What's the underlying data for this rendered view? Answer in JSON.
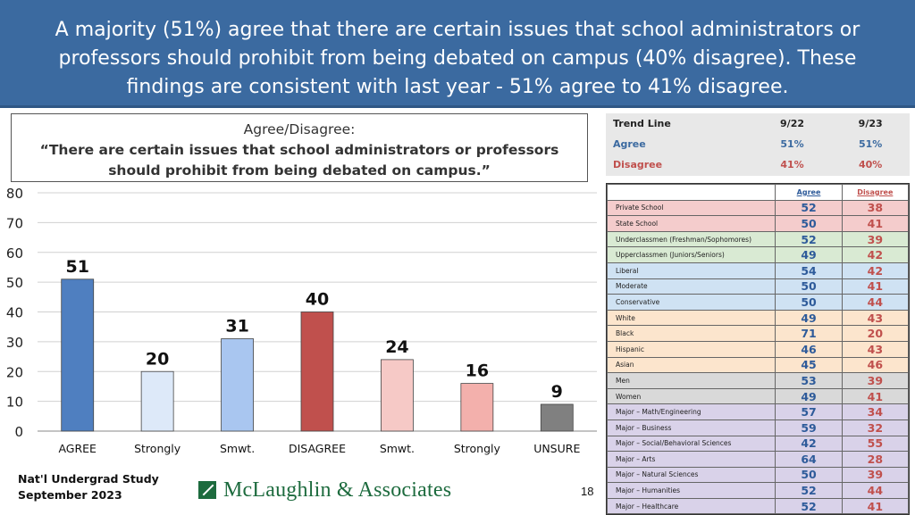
{
  "header": {
    "title": "A majority (51%) agree that there are certain issues that school administrators or professors should prohibit from being debated on campus (40% disagree). These findings are consistent with last year - 51% agree to 41% disagree."
  },
  "question": {
    "line1": "Agree/Disagree:",
    "line2": "“There are certain issues that school administrators or professors should prohibit from being debated on campus.”"
  },
  "chart_data": {
    "type": "bar",
    "categories": [
      "AGREE",
      "Strongly",
      "Smwt.",
      "DISAGREE",
      "Smwt.",
      "Strongly",
      "UNSURE"
    ],
    "values": [
      51,
      20,
      31,
      40,
      24,
      16,
      9
    ],
    "ylim": [
      0,
      80
    ],
    "yticks": [
      0,
      10,
      20,
      30,
      40,
      50,
      60,
      70,
      80
    ],
    "grid": true,
    "bar_colors": [
      "#4f7fc0",
      "#dde9f9",
      "#a9c6f0",
      "#c0504d",
      "#f6c9c6",
      "#f3b0ac",
      "#808080"
    ]
  },
  "trend": {
    "header": [
      "Trend Line",
      "9/22",
      "9/23"
    ],
    "rows": [
      {
        "label": "Agree",
        "v1": "51%",
        "v2": "51%"
      },
      {
        "label": "Disagree",
        "v1": "41%",
        "v2": "40%"
      }
    ]
  },
  "demo": {
    "header": {
      "agree": "Agree",
      "disagree": "Disagree"
    },
    "rows": [
      {
        "label": "Private School",
        "agree": "52",
        "disagree": "38",
        "bg": "#f4cccc"
      },
      {
        "label": "State School",
        "agree": "50",
        "disagree": "41",
        "bg": "#f4cccc"
      },
      {
        "label": "Underclassmen (Freshman/Sophomores)",
        "agree": "52",
        "disagree": "39",
        "bg": "#d9ead3"
      },
      {
        "label": "Upperclassmen (Juniors/Seniors)",
        "agree": "49",
        "disagree": "42",
        "bg": "#d9ead3"
      },
      {
        "label": "Liberal",
        "agree": "54",
        "disagree": "42",
        "bg": "#cfe2f3"
      },
      {
        "label": "Moderate",
        "agree": "50",
        "disagree": "41",
        "bg": "#cfe2f3"
      },
      {
        "label": "Conservative",
        "agree": "50",
        "disagree": "44",
        "bg": "#cfe2f3"
      },
      {
        "label": "White",
        "agree": "49",
        "disagree": "43",
        "bg": "#fce5cd"
      },
      {
        "label": "Black",
        "agree": "71",
        "disagree": "20",
        "bg": "#fce5cd"
      },
      {
        "label": "Hispanic",
        "agree": "46",
        "disagree": "43",
        "bg": "#fce5cd"
      },
      {
        "label": "Asian",
        "agree": "45",
        "disagree": "46",
        "bg": "#fce5cd"
      },
      {
        "label": "Men",
        "agree": "53",
        "disagree": "39",
        "bg": "#d9d9d9"
      },
      {
        "label": "Women",
        "agree": "49",
        "disagree": "41",
        "bg": "#d9d9d9"
      },
      {
        "label": "Major – Math/Engineering",
        "agree": "57",
        "disagree": "34",
        "bg": "#d9d2e9"
      },
      {
        "label": "Major – Business",
        "agree": "59",
        "disagree": "32",
        "bg": "#d9d2e9"
      },
      {
        "label": "Major – Social/Behavioral Sciences",
        "agree": "42",
        "disagree": "55",
        "bg": "#d9d2e9"
      },
      {
        "label": "Major – Arts",
        "agree": "64",
        "disagree": "28",
        "bg": "#d9d2e9"
      },
      {
        "label": "Major – Natural Sciences",
        "agree": "50",
        "disagree": "39",
        "bg": "#d9d2e9"
      },
      {
        "label": "Major – Humanities",
        "agree": "52",
        "disagree": "44",
        "bg": "#d9d2e9"
      },
      {
        "label": "Major – Healthcare",
        "agree": "52",
        "disagree": "41",
        "bg": "#d9d2e9"
      }
    ]
  },
  "footer": {
    "line1": "Nat'l Undergrad Study",
    "line2": "September 2023",
    "page": "18"
  },
  "logo": {
    "name": "McLaughlin & Associates"
  }
}
